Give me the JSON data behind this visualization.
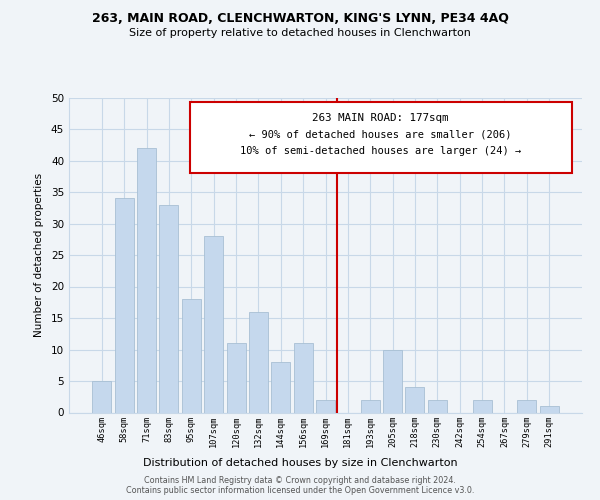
{
  "title": "263, MAIN ROAD, CLENCHWARTON, KING'S LYNN, PE34 4AQ",
  "subtitle": "Size of property relative to detached houses in Clenchwarton",
  "xlabel": "Distribution of detached houses by size in Clenchwarton",
  "ylabel": "Number of detached properties",
  "bar_labels": [
    "46sqm",
    "58sqm",
    "71sqm",
    "83sqm",
    "95sqm",
    "107sqm",
    "120sqm",
    "132sqm",
    "144sqm",
    "156sqm",
    "169sqm",
    "181sqm",
    "193sqm",
    "205sqm",
    "218sqm",
    "230sqm",
    "242sqm",
    "254sqm",
    "267sqm",
    "279sqm",
    "291sqm"
  ],
  "bar_values": [
    5,
    34,
    42,
    33,
    18,
    28,
    11,
    16,
    8,
    11,
    2,
    0,
    2,
    10,
    4,
    2,
    0,
    2,
    0,
    2,
    1
  ],
  "bar_color": "#c5d8ed",
  "bar_edge_color": "#a8bfd4",
  "vline_color": "#cc0000",
  "annotation_title": "263 MAIN ROAD: 177sqm",
  "annotation_line1": "← 90% of detached houses are smaller (206)",
  "annotation_line2": "10% of semi-detached houses are larger (24) →",
  "ylim": [
    0,
    50
  ],
  "yticks": [
    0,
    5,
    10,
    15,
    20,
    25,
    30,
    35,
    40,
    45,
    50
  ],
  "footnote1": "Contains HM Land Registry data © Crown copyright and database right 2024.",
  "footnote2": "Contains public sector information licensed under the Open Government Licence v3.0.",
  "bg_color": "#f0f4f8",
  "grid_color": "#c8d8e8"
}
